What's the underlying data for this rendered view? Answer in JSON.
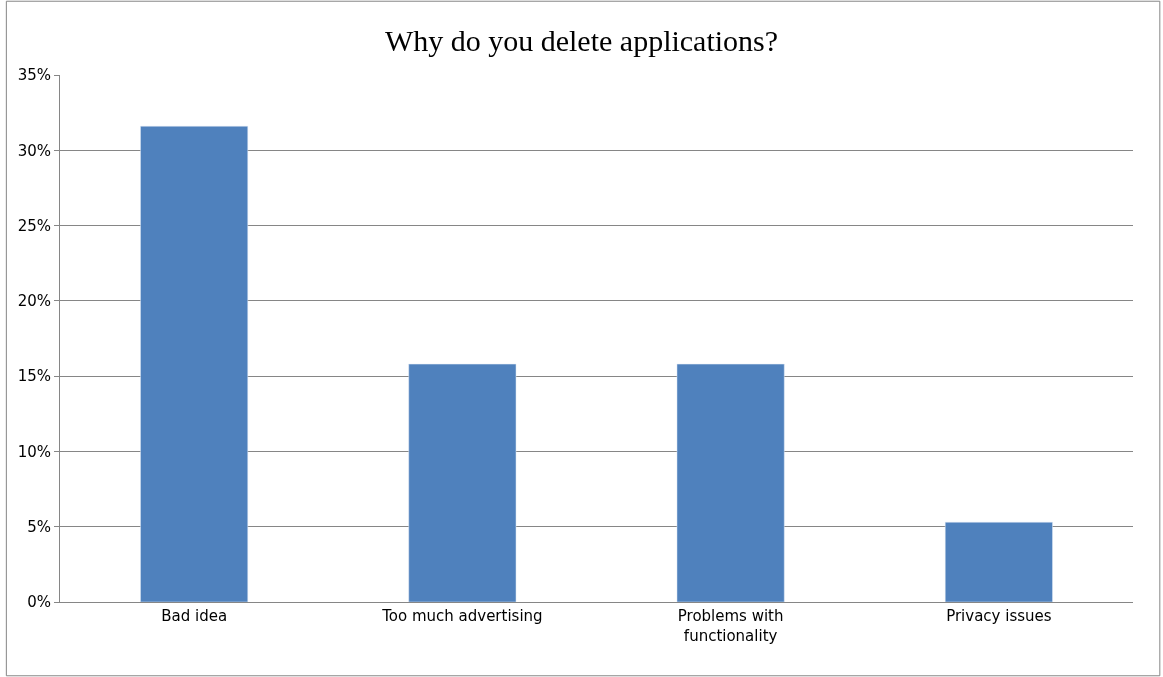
{
  "chart_data": {
    "type": "bar",
    "title": "Why do you delete applications?",
    "categories": [
      "Bad idea",
      "Too much advertising",
      "Problems with functionality",
      "Privacy issues"
    ],
    "values": [
      31.6,
      15.8,
      15.8,
      5.3
    ],
    "color": "#4f81bd",
    "ylim": [
      0,
      35
    ],
    "yticks": [
      {
        "value": 0,
        "label": "0%"
      },
      {
        "value": 5,
        "label": "5%"
      },
      {
        "value": 10,
        "label": "10%"
      },
      {
        "value": 15,
        "label": "15%"
      },
      {
        "value": 20,
        "label": "20%"
      },
      {
        "value": 25,
        "label": "25%"
      },
      {
        "value": 30,
        "label": "30%"
      },
      {
        "value": 35,
        "label": "35%"
      }
    ],
    "grid": "y"
  }
}
